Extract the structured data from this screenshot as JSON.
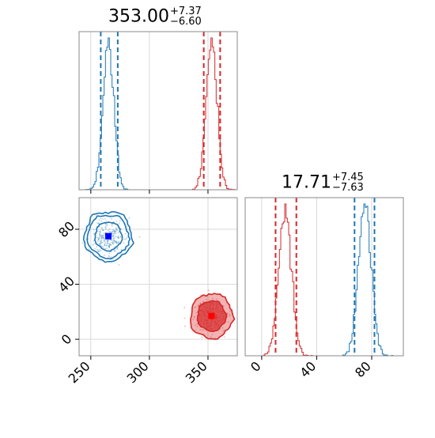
{
  "chart_data": [
    {
      "type": "histogram",
      "panel": "top-left",
      "title": {
        "value": "353.00",
        "plus": "+7.37",
        "minus": "−6.60"
      },
      "xlim": [
        240,
        375
      ],
      "x_ticks": [
        "250",
        "300",
        "350"
      ],
      "show_x_tick_labels": false,
      "grid": true,
      "series": [
        {
          "color": "#1f77b4",
          "center": 265,
          "width": 4.6,
          "quantile_lines": [
            258.5,
            273.0
          ]
        },
        {
          "color": "#d62728",
          "center": 353,
          "width": 4.6,
          "quantile_lines": [
            346.4,
            360.4
          ]
        }
      ]
    },
    {
      "type": "scatter",
      "panel": "bottom-left",
      "xlim": [
        240,
        375
      ],
      "ylim": [
        -12,
        103
      ],
      "x_ticks": [
        "250",
        "300",
        "350"
      ],
      "y_ticks": [
        "0",
        "40",
        "80"
      ],
      "grid": true,
      "series": [
        {
          "color": "#1f77b4",
          "style": "contour",
          "center": [
            265,
            75
          ],
          "marker": {
            "x": 265,
            "y": 75,
            "color": "#0000ff"
          }
        },
        {
          "color": "#d62728",
          "style": "filled-contour",
          "center": [
            353,
            17
          ],
          "marker": {
            "x": 353,
            "y": 17,
            "color": "#ff0000"
          }
        }
      ]
    },
    {
      "type": "histogram",
      "panel": "bottom-right",
      "title": {
        "value": "17.71",
        "plus": "+7.45",
        "minus": "−7.63"
      },
      "xlim": [
        -12,
        103
      ],
      "x_ticks": [
        "0",
        "40",
        "80"
      ],
      "grid": true,
      "series": [
        {
          "color": "#d62728",
          "center": 17,
          "width": 4.6,
          "quantile_lines": [
            10.1,
            25.2
          ]
        },
        {
          "color": "#1f77b4",
          "center": 75,
          "width": 4.6,
          "quantile_lines": [
            67.5,
            82.0
          ]
        }
      ]
    }
  ]
}
